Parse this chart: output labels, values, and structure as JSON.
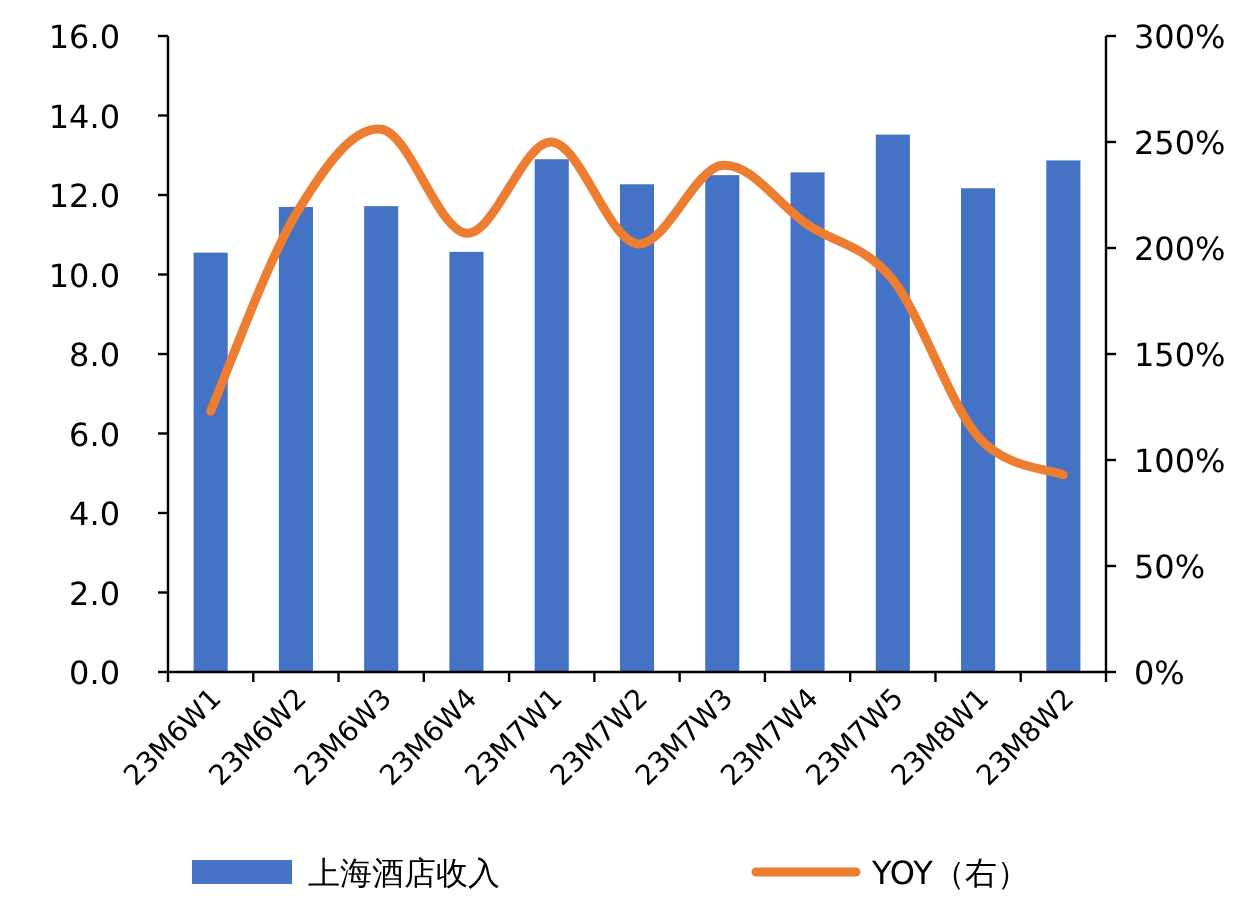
{
  "chart_data": {
    "type": "bar",
    "categories": [
      "23M6W1",
      "23M6W2",
      "23M6W3",
      "23M6W4",
      "23M7W1",
      "23M7W2",
      "23M7W3",
      "23M7W4",
      "23M7W5",
      "23M8W1",
      "23M8W2"
    ],
    "series": [
      {
        "name": "上海酒店收入",
        "color": "#4472c4",
        "values": [
          10.55,
          11.7,
          11.72,
          10.57,
          12.9,
          12.27,
          12.5,
          12.57,
          13.52,
          12.17,
          12.87
        ]
      },
      {
        "name": "YOY（右）",
        "type": "line",
        "axis": "y2",
        "color": "#ed7d31",
        "values": [
          123,
          216,
          256,
          207,
          250,
          202,
          239,
          211,
          185,
          111,
          93
        ]
      }
    ],
    "ylim": [
      0,
      16
    ],
    "yticks": [
      {
        "value": 0,
        "label": "0.0"
      },
      {
        "value": 2,
        "label": "2.0"
      },
      {
        "value": 4,
        "label": "4.0"
      },
      {
        "value": 6,
        "label": "6.0"
      },
      {
        "value": 8,
        "label": "8.0"
      },
      {
        "value": 10,
        "label": "10.0"
      },
      {
        "value": 12,
        "label": "12.0"
      },
      {
        "value": 14,
        "label": "14.0"
      },
      {
        "value": 16,
        "label": "16.0"
      }
    ],
    "y2lim": [
      0,
      300
    ],
    "y2ticks": [
      {
        "value": 0,
        "label": "0%"
      },
      {
        "value": 50,
        "label": "50%"
      },
      {
        "value": 100,
        "label": "100%"
      },
      {
        "value": 150,
        "label": "150%"
      },
      {
        "value": 200,
        "label": "200%"
      },
      {
        "value": 250,
        "label": "250%"
      },
      {
        "value": 300,
        "label": "300%"
      }
    ],
    "legend": "bottom",
    "grid": false,
    "marker": "none"
  }
}
